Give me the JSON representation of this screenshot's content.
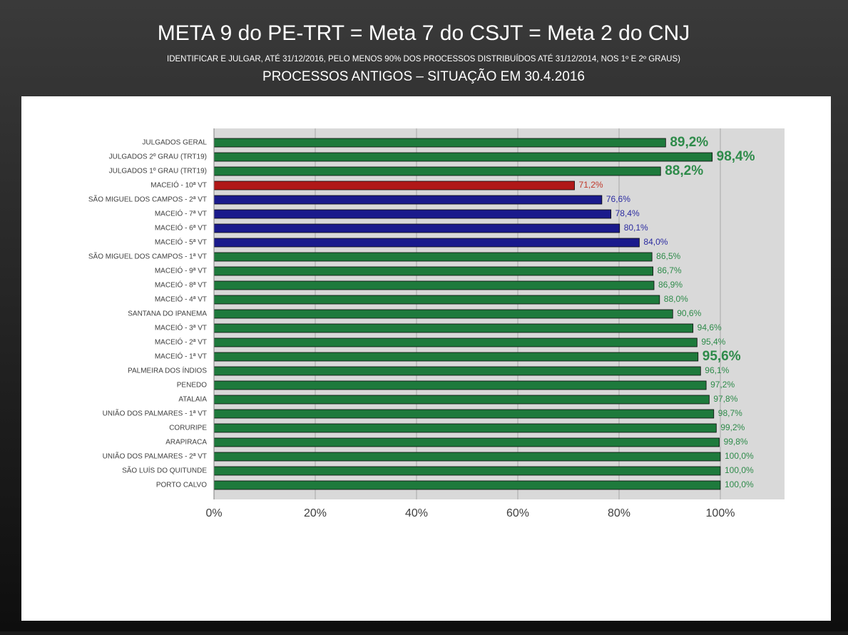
{
  "chart_data": {
    "type": "bar",
    "orientation": "horizontal",
    "title": "META 9 do PE-TRT = Meta 7 do CSJT = Meta 2 do CNJ",
    "subtitle": "IDENTIFICAR E JULGAR, ATÉ 31/12/2016, PELO MENOS 90% DOS PROCESSOS DISTRIBUÍDOS ATÉ 31/12/2014, NOS 1º E 2º GRAUS)",
    "subtitle2": "PROCESSOS ANTIGOS – SITUAÇÃO EM 30.4.2016",
    "categories": [
      "JULGADOS GERAL",
      "JULGADOS 2º GRAU (TRT19)",
      "JULGADOS 1º GRAU (TRT19)",
      "MACEIÓ - 10ª VT",
      "SÃO MIGUEL DOS CAMPOS - 2ª VT",
      "MACEIÓ - 7ª VT",
      "MACEIÓ - 6ª VT",
      "MACEIÓ - 5ª VT",
      "SÃO MIGUEL DOS CAMPOS - 1ª VT",
      "MACEIÓ - 9ª VT",
      "MACEIÓ - 8ª VT",
      "MACEIÓ - 4ª VT",
      "SANTANA DO IPANEMA",
      "MACEIÓ - 3ª VT",
      "MACEIÓ - 2ª VT",
      "MACEIÓ - 1ª VT",
      "PALMEIRA DOS ÍNDIOS",
      "PENEDO",
      "ATALAIA",
      "UNIÃO DOS PALMARES - 1ª VT",
      "CORURIPE",
      "ARAPIRACA",
      "UNIÃO DOS PALMARES - 2ª VT",
      "SÃO LUÍS DO QUITUNDE",
      "PORTO CALVO"
    ],
    "values": [
      89.2,
      98.4,
      88.2,
      71.2,
      76.6,
      78.4,
      80.1,
      84.0,
      86.5,
      86.7,
      86.9,
      88.0,
      90.6,
      94.6,
      95.4,
      95.6,
      96.1,
      97.2,
      97.8,
      98.7,
      99.2,
      99.8,
      100.0,
      100.0,
      100.0
    ],
    "value_labels": [
      "89,2%",
      "98,4%",
      "88,2%",
      "71,2%",
      "76,6%",
      "78,4%",
      "80,1%",
      "84,0%",
      "86,5%",
      "86,7%",
      "86,9%",
      "88,0%",
      "90,6%",
      "94,6%",
      "95,4%",
      "95,6%",
      "96,1%",
      "97,2%",
      "97,8%",
      "98,7%",
      "99,2%",
      "99,8%",
      "100,0%",
      "100,0%",
      "100,0%"
    ],
    "colors": [
      "#1e7a3c",
      "#1e7a3c",
      "#1e7a3c",
      "#b01818",
      "#1a1a8c",
      "#1a1a8c",
      "#1a1a8c",
      "#1a1a8c",
      "#1e7a3c",
      "#1e7a3c",
      "#1e7a3c",
      "#1e7a3c",
      "#1e7a3c",
      "#1e7a3c",
      "#1e7a3c",
      "#1e7a3c",
      "#1e7a3c",
      "#1e7a3c",
      "#1e7a3c",
      "#1e7a3c",
      "#1e7a3c",
      "#1e7a3c",
      "#1e7a3c",
      "#1e7a3c",
      "#1e7a3c"
    ],
    "xlim": [
      0,
      100
    ],
    "xticks": [
      {
        "value": 0,
        "label": "0%"
      },
      {
        "value": 20,
        "label": "20%"
      },
      {
        "value": 40,
        "label": "40%"
      },
      {
        "value": 60,
        "label": "60%"
      },
      {
        "value": 80,
        "label": "80%"
      },
      {
        "value": 100,
        "label": "100%"
      }
    ],
    "grid": true
  }
}
